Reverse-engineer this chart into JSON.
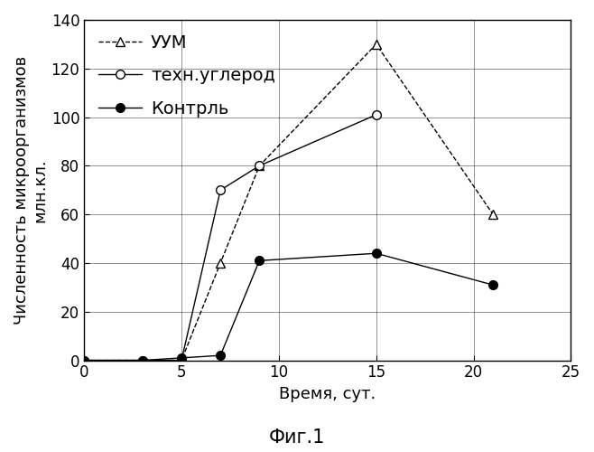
{
  "title": "Фиг.1",
  "xlabel": "Время, сут.",
  "ylabel_top": "Численность микроорганизмов",
  "ylabel_bottom": "млн.кл.",
  "xlim": [
    0,
    25
  ],
  "ylim": [
    0,
    140
  ],
  "xticks": [
    0,
    5,
    10,
    15,
    20,
    25
  ],
  "yticks": [
    0,
    20,
    40,
    60,
    80,
    100,
    120,
    140
  ],
  "series": [
    {
      "label": "УУМ",
      "x": [
        0,
        3,
        5,
        7,
        9,
        15,
        21
      ],
      "y": [
        0,
        0,
        0,
        40,
        80,
        130,
        60
      ],
      "marker": "^",
      "linestyle": "--",
      "color": "black",
      "markersize": 7,
      "linewidth": 1.0,
      "markerfacecolor": "white",
      "skip_last": false
    },
    {
      "label": "техн.углерод",
      "x": [
        0,
        3,
        5,
        7,
        9,
        15
      ],
      "y": [
        0,
        0,
        0,
        70,
        80,
        101
      ],
      "marker": "o",
      "linestyle": "-",
      "color": "black",
      "markersize": 7,
      "linewidth": 1.0,
      "markerfacecolor": "white",
      "skip_last": false
    },
    {
      "label": "Контрль",
      "x": [
        0,
        3,
        5,
        7,
        9,
        15,
        21
      ],
      "y": [
        0,
        0,
        1,
        2,
        41,
        44,
        31
      ],
      "marker": "o",
      "linestyle": "-",
      "color": "black",
      "markersize": 7,
      "linewidth": 1.0,
      "markerfacecolor": "black",
      "skip_last": false
    }
  ],
  "grid": true,
  "background_color": "#ffffff",
  "legend_fontsize": 14,
  "axis_fontsize": 13,
  "tick_fontsize": 12,
  "title_fontsize": 15
}
